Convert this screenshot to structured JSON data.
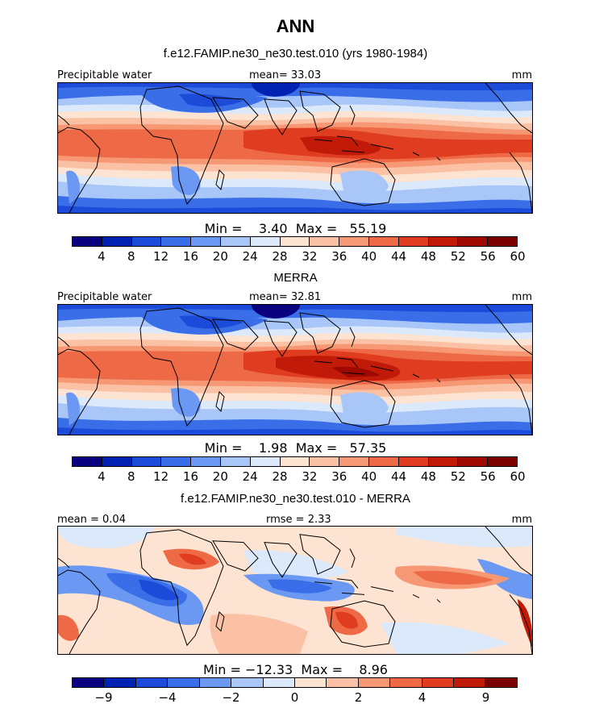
{
  "title": "ANN",
  "colors": {
    "abs_scale": [
      "#08007e",
      "#0022b3",
      "#1b4bd8",
      "#3a6ee8",
      "#6a98f2",
      "#a8c6f8",
      "#dce9fb",
      "#fde3d2",
      "#fbc1a4",
      "#f79874",
      "#ee6a47",
      "#df3c20",
      "#c21a08",
      "#9e0a02",
      "#7a0000"
    ],
    "diff_scale": [
      "#08007e",
      "#0022b3",
      "#1b4bd8",
      "#3a6ee8",
      "#6a98f2",
      "#a8c6f8",
      "#dce9fb",
      "#fde3d2",
      "#fbc1a4",
      "#f79874",
      "#ee6a47",
      "#df3c20",
      "#c21a08",
      "#7a0000"
    ],
    "land_outline": "#000000"
  },
  "panels": [
    {
      "title": "f.e12.FAMIP.ne30_ne30.test.010 (yrs 1980-1984)",
      "left_label": "Precipitable water",
      "center_label": "mean=   33.03",
      "right_label": "mm",
      "minmax": "Min =    3.40  Max =   55.19",
      "variant": "model"
    },
    {
      "title": "MERRA",
      "left_label": "Precipitable water",
      "center_label": "mean=   32.81",
      "right_label": "mm",
      "minmax": "Min =    1.98  Max =   57.35",
      "variant": "obs"
    },
    {
      "title": "f.e12.FAMIP.ne30_ne30.test.010 - MERRA",
      "left_label": "mean =    0.04",
      "center_label": "rmse =    2.33",
      "right_label": "mm",
      "minmax": "Min = −12.33  Max =    8.96",
      "variant": "diff"
    }
  ],
  "colorbars": {
    "abs_ticks": [
      "4",
      "8",
      "12",
      "16",
      "20",
      "24",
      "28",
      "32",
      "36",
      "40",
      "44",
      "48",
      "52",
      "56",
      "60"
    ],
    "diff_ticks": [
      "−9",
      "−4",
      "−2",
      "0",
      "2",
      "4",
      "9"
    ]
  }
}
